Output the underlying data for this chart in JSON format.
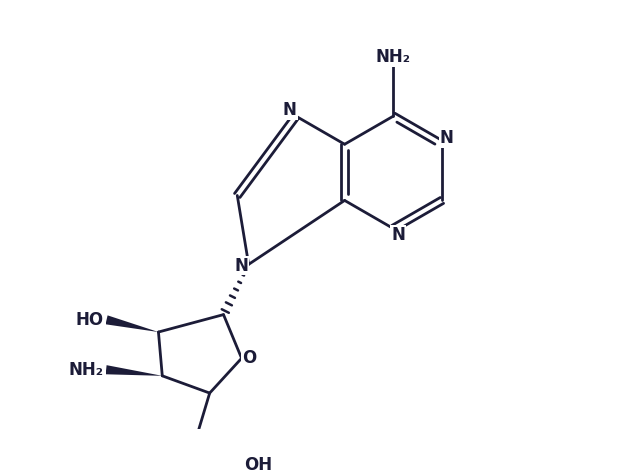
{
  "bg": "#ffffff",
  "lc": "#1C1C38",
  "lw": 2.0,
  "fs": 12,
  "figsize": [
    6.4,
    4.7
  ],
  "dpi": 100,
  "xlim": [
    1.5,
    8.5
  ],
  "ylim": [
    0.8,
    7.8
  ]
}
